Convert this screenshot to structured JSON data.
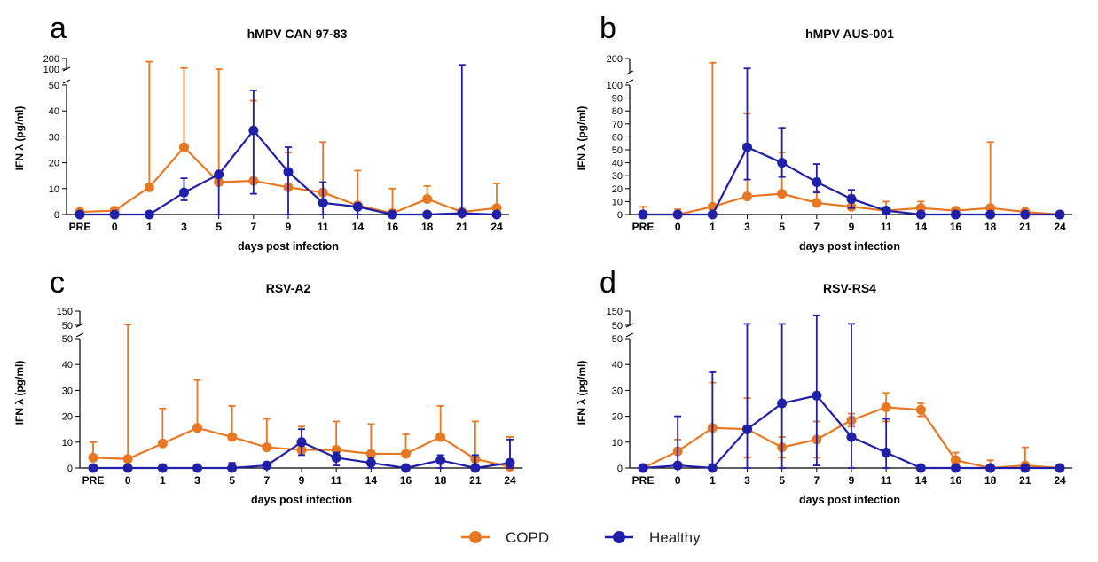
{
  "colors": {
    "COPD": "#E87722",
    "Healthy": "#1F1FA8"
  },
  "legend": [
    {
      "name": "COPD",
      "color": "#E87722"
    },
    {
      "name": "Healthy",
      "color": "#1F1FA8"
    }
  ],
  "chart_data": [
    {
      "type": "line",
      "panel": "a",
      "title": "hMPV CAN 97-83",
      "xlabel": "days post infection",
      "ylabel": "IFN λ (pg/ml)",
      "categories": [
        "PRE",
        "0",
        "1",
        "3",
        "5",
        "7",
        "9",
        "11",
        "14",
        "16",
        "18",
        "21",
        "24"
      ],
      "y_lower": {
        "range": [
          0,
          50
        ],
        "ticks": [
          "0",
          "10",
          "20",
          "30",
          "40",
          "50"
        ]
      },
      "y_upper": {
        "range": [
          100,
          200
        ],
        "ticks": [
          "100",
          "200"
        ]
      },
      "series": [
        {
          "name": "COPD",
          "values": [
            1,
            1.5,
            10.5,
            26,
            12.5,
            13,
            10.5,
            8.5,
            3.5,
            0.5,
            6,
            1,
            2.5
          ],
          "error_upper": [
            1.5,
            1.5,
            170,
            110,
            100,
            44,
            24,
            28,
            17,
            10,
            11,
            1.5,
            12
          ]
        },
        {
          "name": "Healthy",
          "values": [
            0,
            0,
            0,
            8.5,
            15.5,
            32.5,
            16.5,
            4.5,
            3,
            0,
            0,
            0.5,
            0
          ],
          "error_upper": [
            0,
            0,
            0,
            14,
            16,
            48,
            26,
            12.5,
            4,
            0,
            0,
            140,
            0
          ],
          "error_lower": [
            0,
            0,
            0,
            5.5,
            0,
            8,
            0,
            0,
            0,
            0,
            0,
            0,
            0
          ]
        }
      ]
    },
    {
      "type": "line",
      "panel": "b",
      "title": "hMPV AUS-001",
      "xlabel": "days post infection",
      "ylabel": "IFN λ (pg/ml)",
      "categories": [
        "PRE",
        "0",
        "1",
        "3",
        "5",
        "7",
        "9",
        "11",
        "14",
        "16",
        "18",
        "21",
        "24"
      ],
      "y_lower": {
        "range": [
          0,
          100
        ],
        "ticks": [
          "0",
          "10",
          "20",
          "30",
          "40",
          "50",
          "60",
          "70",
          "80",
          "90",
          "100"
        ]
      },
      "y_upper": {
        "range": [
          100,
          200
        ],
        "ticks": [
          "200"
        ]
      },
      "series": [
        {
          "name": "COPD",
          "values": [
            0,
            0,
            6,
            14,
            16,
            9,
            6,
            3,
            5,
            3,
            5,
            2,
            0
          ],
          "error_upper": [
            6,
            4,
            170,
            78,
            48,
            18,
            15,
            10,
            10,
            5,
            56,
            3,
            0
          ]
        },
        {
          "name": "Healthy",
          "values": [
            0,
            0,
            0,
            52,
            40,
            25,
            12,
            3,
            0,
            0,
            0,
            0,
            0
          ],
          "error_upper": [
            0,
            0,
            0,
            130,
            67,
            39,
            19,
            5,
            0,
            0,
            0,
            0,
            0
          ],
          "error_lower": [
            0,
            0,
            0,
            27,
            29,
            17,
            5,
            0,
            0,
            0,
            0,
            0,
            0
          ]
        }
      ]
    },
    {
      "type": "line",
      "panel": "c",
      "title": "RSV-A2",
      "xlabel": "days post infection",
      "ylabel": "IFN λ (pg/ml)",
      "categories": [
        "PRE",
        "0",
        "1",
        "3",
        "5",
        "7",
        "9",
        "11",
        "14",
        "16",
        "18",
        "21",
        "24"
      ],
      "y_lower": {
        "range": [
          0,
          50
        ],
        "ticks": [
          "0",
          "10",
          "20",
          "30",
          "40",
          "50"
        ]
      },
      "y_upper": {
        "range": [
          50,
          150
        ],
        "ticks": [
          "50",
          "150"
        ]
      },
      "series": [
        {
          "name": "COPD",
          "values": [
            4,
            3.5,
            9.5,
            15.5,
            12,
            8,
            7,
            7,
            5.5,
            5.5,
            12,
            3.5,
            0.5
          ],
          "error_upper": [
            10,
            55,
            23,
            34,
            24,
            19,
            16,
            18,
            17,
            13,
            24,
            18,
            12
          ]
        },
        {
          "name": "Healthy",
          "values": [
            0,
            0,
            0,
            0,
            0,
            1,
            10,
            4,
            2,
            0,
            3,
            0,
            2
          ],
          "error_upper": [
            0,
            0,
            0,
            0,
            2,
            2,
            15,
            6,
            4,
            0,
            5,
            5,
            11
          ],
          "error_lower": [
            0,
            0,
            0,
            0,
            0,
            0,
            5,
            1,
            0,
            0,
            0,
            0,
            0
          ]
        }
      ]
    },
    {
      "type": "line",
      "panel": "d",
      "title": "RSV-RS4",
      "xlabel": "days post infection",
      "ylabel": "IFN λ (pg/ml)",
      "categories": [
        "PRE",
        "0",
        "1",
        "3",
        "5",
        "7",
        "9",
        "11",
        "14",
        "16",
        "18",
        "21",
        "24"
      ],
      "y_lower": {
        "range": [
          0,
          50
        ],
        "ticks": [
          "0",
          "10",
          "20",
          "30",
          "40",
          "50"
        ]
      },
      "y_upper": {
        "range": [
          50,
          150
        ],
        "ticks": [
          "50",
          "150"
        ]
      },
      "series": [
        {
          "name": "COPD",
          "values": [
            0,
            6.5,
            15.5,
            15,
            8,
            11,
            18.5,
            23.5,
            22.5,
            3,
            0,
            1,
            0
          ],
          "error_upper": [
            0,
            11,
            33,
            27,
            12,
            18,
            21,
            29,
            25,
            6,
            3,
            8,
            0
          ],
          "error_lower": [
            0,
            2,
            0,
            4,
            4,
            4,
            16,
            18,
            20,
            0,
            0,
            0,
            0
          ]
        },
        {
          "name": "Healthy",
          "values": [
            0,
            1,
            0,
            15,
            25,
            28,
            12,
            6,
            0,
            0,
            0,
            0,
            0
          ],
          "error_upper": [
            0,
            20,
            37,
            60,
            60,
            120,
            60,
            19,
            0,
            0,
            0,
            0,
            0
          ],
          "error_lower": [
            0,
            0,
            0,
            0,
            0,
            1,
            0,
            0,
            0,
            0,
            0,
            0,
            0
          ]
        }
      ]
    }
  ]
}
